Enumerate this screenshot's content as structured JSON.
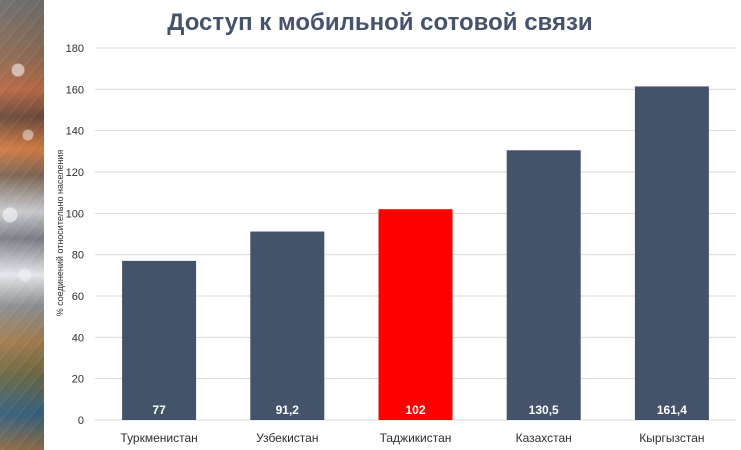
{
  "chart_data": {
    "type": "bar",
    "title": "Доступ к мобильной сотовой связи",
    "ylabel": "% соединений относительно населения",
    "xlabel": "",
    "categories": [
      "Туркменистан",
      "Узбекистан",
      "Таджикистан",
      "Казахстан",
      "Кыргызстан"
    ],
    "values": [
      77,
      91.2,
      102,
      130.5,
      161.4
    ],
    "data_labels": [
      "77",
      "91,2",
      "102",
      "130,5",
      "161,4"
    ],
    "yticks": [
      0,
      20,
      40,
      60,
      80,
      100,
      120,
      140,
      160,
      180
    ],
    "ylim": [
      0,
      180
    ],
    "grid": true,
    "legend": "none",
    "colors": {
      "bar_default": "#44526a",
      "bar_highlight": "#ff0000",
      "grid": "#d9d9d9",
      "axis_text": "#2f2f2f",
      "label_text": "#ffffff",
      "title": "#45536c"
    },
    "highlight_category": "Таджикистан"
  }
}
